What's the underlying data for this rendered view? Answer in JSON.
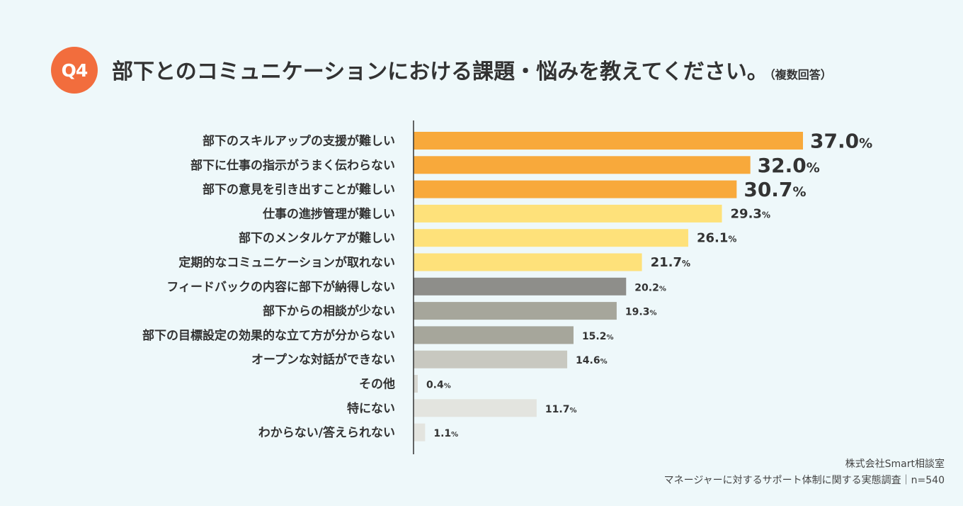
{
  "header": {
    "badge": "Q4",
    "title": "部下とのコミュニケーションにおける課題・悩みを教えてください。",
    "title_note": "（複数回答）"
  },
  "chart_data": {
    "type": "bar",
    "orientation": "horizontal",
    "unit": "%",
    "xlim": [
      0,
      37.0
    ],
    "categories": [
      "部下のスキルアップの支援が難しい",
      "部下に仕事の指示がうまく伝わらない",
      "部下の意見を引き出すことが難しい",
      "仕事の進捗管理が難しい",
      "部下のメンタルケアが難しい",
      "定期的なコミュニケーションが取れない",
      "フィードバックの内容に部下が納得しない",
      "部下からの相談が少ない",
      "部下の目標設定の効果的な立て方が分からない",
      "オープンな対話ができない",
      "その他",
      "特にない",
      "わからない/答えられない"
    ],
    "values": [
      37.0,
      32.0,
      30.7,
      29.3,
      26.1,
      21.7,
      20.2,
      19.3,
      15.2,
      14.6,
      0.4,
      11.7,
      1.1
    ],
    "labels": [
      "37.0",
      "32.0",
      "30.7",
      "29.3",
      "26.1",
      "21.7",
      "20.2",
      "19.3",
      "15.2",
      "14.6",
      "0.4",
      "11.7",
      "1.1"
    ],
    "colors": [
      "#f8a93b",
      "#f8a93b",
      "#f8a93b",
      "#fee17a",
      "#fee17a",
      "#fee17a",
      "#8e8e8a",
      "#a6a69b",
      "#a6a69b",
      "#c8c8c0",
      "#d6d6d0",
      "#e3e4df",
      "#e3e4df"
    ]
  },
  "footer": {
    "company": "株式会社Smart相談室",
    "survey": "マネージャーに対するサポート体制に関する実態調査｜n=540"
  }
}
